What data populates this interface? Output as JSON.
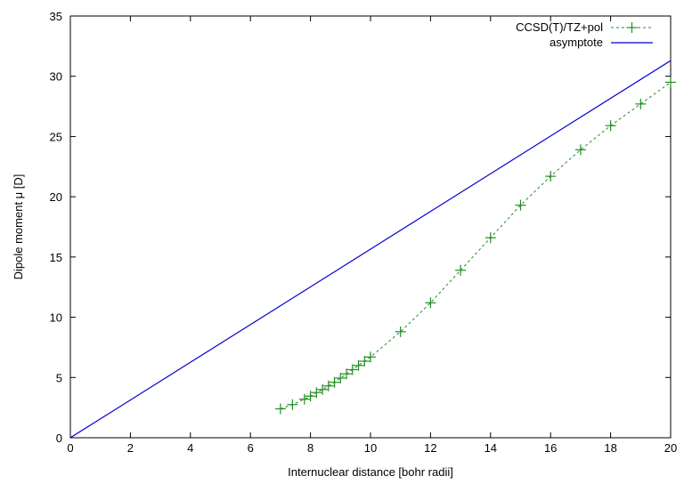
{
  "chart_data": {
    "type": "line",
    "xlabel": "Internuclear distance [bohr radii]",
    "ylabel": "Dipole moment μ [D]",
    "xlim": [
      0,
      20
    ],
    "ylim": [
      0,
      35
    ],
    "x_ticks": [
      0,
      2,
      4,
      6,
      8,
      10,
      12,
      14,
      16,
      18,
      20
    ],
    "y_ticks": [
      0,
      5,
      10,
      15,
      20,
      25,
      30,
      35
    ],
    "grid": false,
    "legend_position": "top-right",
    "series": [
      {
        "name": "CCSD(T)/TZ+pol",
        "style": "dashed line with plus markers",
        "color": "#228b22",
        "x": [
          7.0,
          7.4,
          7.8,
          8.0,
          8.2,
          8.4,
          8.6,
          8.8,
          9.0,
          9.2,
          9.4,
          9.6,
          9.8,
          10.0,
          11.0,
          12.0,
          13.0,
          14.0,
          15.0,
          16.0,
          17.0,
          18.0,
          19.0,
          20.0
        ],
        "y": [
          2.4,
          2.75,
          3.2,
          3.45,
          3.75,
          4.0,
          4.3,
          4.6,
          4.95,
          5.3,
          5.65,
          6.0,
          6.35,
          6.7,
          8.8,
          11.2,
          13.9,
          16.6,
          19.3,
          21.7,
          23.9,
          25.9,
          27.7,
          29.5
        ]
      },
      {
        "name": "asymptote",
        "style": "solid line",
        "color": "#0000cc",
        "x": [
          0,
          20
        ],
        "y": [
          0,
          31.3
        ]
      }
    ]
  }
}
